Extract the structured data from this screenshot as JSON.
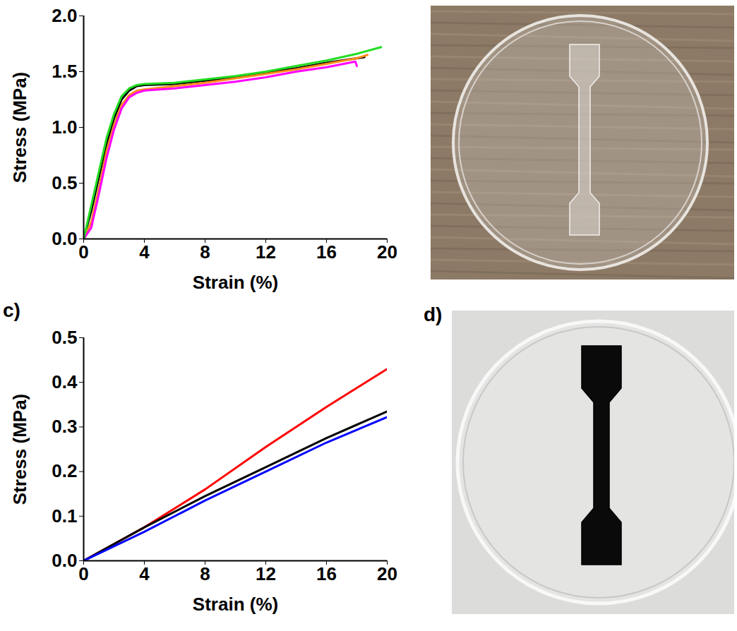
{
  "chart_data": [
    {
      "type": "line",
      "x_label": "Strain (%)",
      "y_label": "Stress (MPa)",
      "xlim": [
        0,
        20
      ],
      "xticks": [
        0,
        4,
        8,
        12,
        16,
        20
      ],
      "ylim": [
        0,
        2.0
      ],
      "yticks": [
        {
          "value": 0,
          "label": "0.0"
        },
        {
          "value": 0.5,
          "label": "0.5"
        },
        {
          "value": 1.0,
          "label": "1.0"
        },
        {
          "value": 1.5,
          "label": "1.5"
        },
        {
          "value": 2.0,
          "label": "2.0"
        }
      ],
      "grid": false,
      "series": [
        {
          "color": "#000000",
          "x": [
            0,
            0.5,
            1,
            1.5,
            2,
            2.5,
            3,
            3.5,
            4,
            6,
            8,
            10,
            12,
            14,
            16,
            18.5
          ],
          "values": [
            0,
            0.25,
            0.55,
            0.85,
            1.08,
            1.25,
            1.33,
            1.37,
            1.38,
            1.39,
            1.42,
            1.45,
            1.49,
            1.53,
            1.58,
            1.63
          ]
        },
        {
          "color": "#ff8c1a",
          "x": [
            0,
            0.5,
            1,
            1.5,
            2,
            2.5,
            3,
            3.5,
            4,
            6,
            8,
            10,
            12,
            14,
            16,
            18,
            18.7
          ],
          "values": [
            0,
            0.15,
            0.45,
            0.78,
            1.02,
            1.2,
            1.29,
            1.33,
            1.34,
            1.37,
            1.4,
            1.44,
            1.48,
            1.52,
            1.57,
            1.62,
            1.65
          ]
        },
        {
          "color": "#ff00ff",
          "x": [
            0,
            0.5,
            1,
            1.5,
            2,
            2.5,
            3,
            3.5,
            4,
            6,
            8,
            10,
            12,
            14,
            16,
            17.9,
            18
          ],
          "values": [
            0,
            0.1,
            0.4,
            0.72,
            0.98,
            1.17,
            1.27,
            1.31,
            1.33,
            1.35,
            1.38,
            1.41,
            1.45,
            1.5,
            1.54,
            1.59,
            1.55
          ]
        },
        {
          "color": "#22dd22",
          "x": [
            0,
            0.5,
            1,
            1.5,
            2,
            2.5,
            3,
            3.5,
            4,
            6,
            8,
            10,
            12,
            14,
            16,
            18,
            19.6
          ],
          "values": [
            0,
            0.3,
            0.6,
            0.9,
            1.12,
            1.28,
            1.35,
            1.38,
            1.39,
            1.4,
            1.43,
            1.46,
            1.5,
            1.55,
            1.6,
            1.66,
            1.72
          ]
        }
      ]
    },
    {
      "type": "line",
      "panel_label": "c)",
      "x_label": "Strain (%)",
      "y_label": "Stress (MPa)",
      "xlim": [
        0,
        20
      ],
      "xticks": [
        0,
        4,
        8,
        12,
        16,
        20
      ],
      "ylim": [
        0,
        0.5
      ],
      "yticks": [
        {
          "value": 0,
          "label": "0.0"
        },
        {
          "value": 0.1,
          "label": "0.1"
        },
        {
          "value": 0.2,
          "label": "0.2"
        },
        {
          "value": 0.3,
          "label": "0.3"
        },
        {
          "value": 0.4,
          "label": "0.4"
        },
        {
          "value": 0.5,
          "label": "0.5"
        }
      ],
      "grid": false,
      "x": [
        0,
        4,
        8,
        12,
        16,
        20
      ],
      "series": [
        {
          "color": "#ff0000",
          "values": [
            0,
            0.075,
            0.16,
            0.255,
            0.345,
            0.43
          ]
        },
        {
          "color": "#000000",
          "values": [
            0,
            0.075,
            0.145,
            0.21,
            0.275,
            0.335
          ]
        },
        {
          "color": "#0000ff",
          "values": [
            0,
            0.065,
            0.135,
            0.2,
            0.265,
            0.322
          ]
        }
      ]
    }
  ],
  "photo_label": "d)"
}
